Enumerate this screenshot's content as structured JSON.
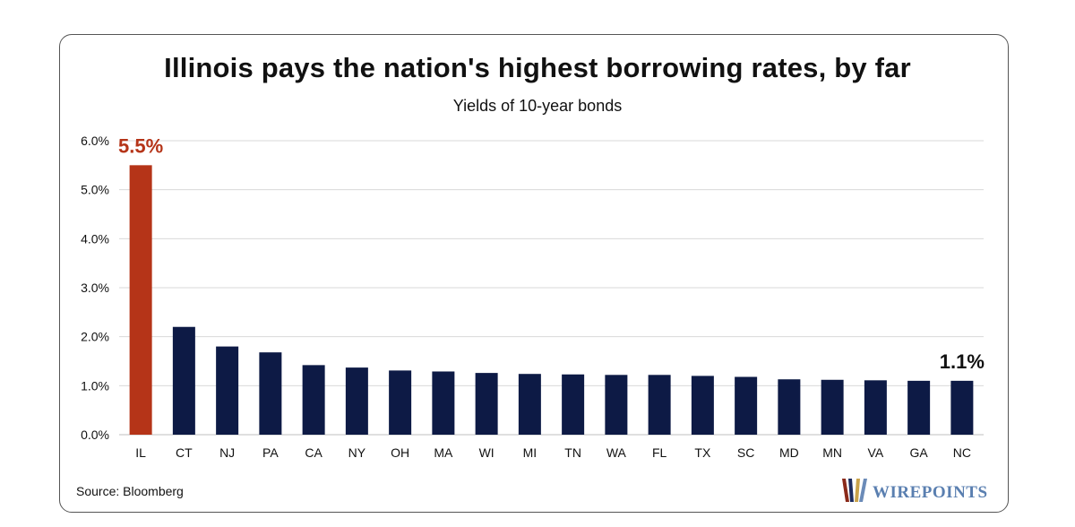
{
  "chart_data": {
    "type": "bar",
    "title": "Illinois pays the nation's highest borrowing rates, by far",
    "subtitle": "Yields of 10-year bonds",
    "categories": [
      "IL",
      "CT",
      "NJ",
      "PA",
      "CA",
      "NY",
      "OH",
      "MA",
      "WI",
      "MI",
      "TN",
      "WA",
      "FL",
      "TX",
      "SC",
      "MD",
      "MN",
      "VA",
      "GA",
      "NC"
    ],
    "values": [
      5.5,
      2.2,
      1.8,
      1.68,
      1.42,
      1.37,
      1.31,
      1.29,
      1.26,
      1.24,
      1.23,
      1.22,
      1.22,
      1.2,
      1.18,
      1.13,
      1.12,
      1.11,
      1.1,
      1.1
    ],
    "ylim": [
      0,
      6
    ],
    "yticks": [
      "0.0%",
      "1.0%",
      "2.0%",
      "3.0%",
      "4.0%",
      "5.0%",
      "6.0%"
    ],
    "grid": true,
    "colors": {
      "highlight": "#b53418",
      "default": "#0d1a45",
      "grid": "#d9d9d9"
    },
    "annotations": [
      {
        "category": "IL",
        "text": "5.5%",
        "color": "#b53418"
      },
      {
        "category": "NC",
        "text": "1.1%",
        "color": "#111111"
      }
    ]
  },
  "source": "Source: Bloomberg",
  "logo": {
    "text": "WIREPOINTS",
    "colors": [
      "#8a2a1a",
      "#1c2b5e",
      "#c9a24a",
      "#6b8bb8"
    ]
  }
}
